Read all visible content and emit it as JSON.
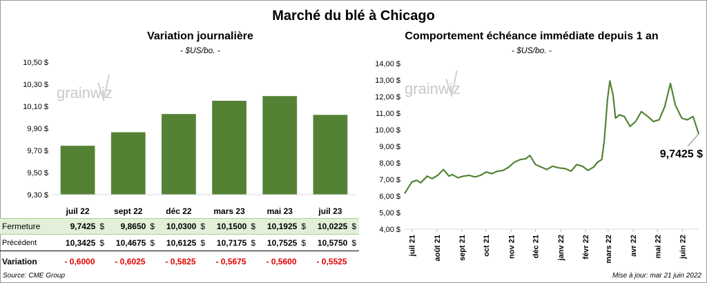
{
  "title": "Marché du blé à Chicago",
  "colors": {
    "bar": "#548235",
    "line": "#548235",
    "close_row": "#e2efd9",
    "negative": "#e00000"
  },
  "watermark": "grainwiz",
  "left_chart": {
    "title": "Variation  journalière",
    "subtitle": "- $US/bo. -"
  },
  "right_chart": {
    "title": "Comportement  échéance immédiate depuis 1 an",
    "subtitle": "- $US/bo. -",
    "callout": "9,7425 $"
  },
  "chart_data": [
    {
      "type": "bar",
      "categories": [
        "juil 22",
        "sept 22",
        "déc 22",
        "mars 23",
        "mai 23",
        "juil 23"
      ],
      "values": [
        9.7425,
        9.865,
        10.03,
        10.15,
        10.1925,
        10.0225
      ],
      "ylim": [
        9.3,
        10.5
      ],
      "yticks": [
        "9,30 $",
        "9,50 $",
        "9,70 $",
        "9,90 $",
        "10,10 $",
        "10,30 $",
        "10,50 $"
      ],
      "ytick_values": [
        9.3,
        9.5,
        9.7,
        9.9,
        10.1,
        10.3,
        10.5
      ],
      "grid": false
    },
    {
      "type": "line",
      "x": [
        "2021-06-22",
        "2021-07-01",
        "2021-07-07",
        "2021-07-12",
        "2021-07-20",
        "2021-07-26",
        "2021-08-02",
        "2021-08-09",
        "2021-08-16",
        "2021-08-20",
        "2021-08-27",
        "2021-09-03",
        "2021-09-10",
        "2021-09-17",
        "2021-09-24",
        "2021-10-01",
        "2021-10-08",
        "2021-10-15",
        "2021-10-22",
        "2021-10-29",
        "2021-11-05",
        "2021-11-12",
        "2021-11-19",
        "2021-11-24",
        "2021-12-01",
        "2021-12-08",
        "2021-12-15",
        "2021-12-22",
        "2021-12-30",
        "2022-01-07",
        "2022-01-14",
        "2022-01-21",
        "2022-01-28",
        "2022-02-04",
        "2022-02-11",
        "2022-02-16",
        "2022-02-21",
        "2022-02-24",
        "2022-02-28",
        "2022-03-03",
        "2022-03-07",
        "2022-03-10",
        "2022-03-15",
        "2022-03-21",
        "2022-03-28",
        "2022-04-04",
        "2022-04-11",
        "2022-04-19",
        "2022-04-26",
        "2022-05-03",
        "2022-05-10",
        "2022-05-17",
        "2022-05-23",
        "2022-05-31",
        "2022-06-07",
        "2022-06-14",
        "2022-06-21"
      ],
      "values": [
        6.15,
        6.85,
        6.95,
        6.8,
        7.2,
        7.05,
        7.25,
        7.6,
        7.2,
        7.3,
        7.1,
        7.2,
        7.25,
        7.15,
        7.25,
        7.45,
        7.35,
        7.5,
        7.55,
        7.75,
        8.05,
        8.2,
        8.25,
        8.45,
        7.9,
        7.75,
        7.6,
        7.8,
        7.7,
        7.65,
        7.5,
        7.9,
        7.8,
        7.55,
        7.75,
        8.05,
        8.2,
        9.3,
        11.8,
        12.95,
        12.1,
        10.7,
        10.9,
        10.8,
        10.2,
        10.5,
        11.1,
        10.8,
        10.5,
        10.6,
        11.4,
        12.8,
        11.5,
        10.7,
        10.6,
        10.8,
        9.75
      ],
      "ylim": [
        4.0,
        14.0
      ],
      "yticks": [
        "4,00 $",
        "5,00 $",
        "6,00 $",
        "7,00 $",
        "8,00 $",
        "9,00 $",
        "10,00 $",
        "11,00 $",
        "12,00 $",
        "13,00 $",
        "14,00 $"
      ],
      "ytick_values": [
        4,
        5,
        6,
        7,
        8,
        9,
        10,
        11,
        12,
        13,
        14
      ],
      "xticks": [
        "juil 21",
        "août 21",
        "sept 21",
        "oct 21",
        "nov 21",
        "déc 21",
        "janv 22",
        "févr 22",
        "mars 22",
        "avr 22",
        "mai 22",
        "juin 22"
      ],
      "xtick_dates": [
        "2021-07-01",
        "2021-08-01",
        "2021-09-01",
        "2021-10-01",
        "2021-11-01",
        "2021-12-01",
        "2022-01-01",
        "2022-02-01",
        "2022-03-01",
        "2022-04-01",
        "2022-05-01",
        "2022-06-01"
      ],
      "grid": false
    }
  ],
  "table": {
    "rows": [
      {
        "label": "Fermeture",
        "values": [
          "9,7425",
          "9,8650",
          "10,0300",
          "10,1500",
          "10,1925",
          "10,0225"
        ],
        "unit": "$"
      },
      {
        "label": "Précédent",
        "values": [
          "10,3425",
          "10,4675",
          "10,6125",
          "10,7175",
          "10,7525",
          "10,5750"
        ],
        "unit": "$"
      },
      {
        "label": "Variation",
        "values": [
          "- 0,6000",
          "- 0,6025",
          "- 0,5825",
          "- 0,5675",
          "- 0,5600",
          "- 0,5525"
        ]
      }
    ]
  },
  "footer": {
    "source": "Source: CME Group",
    "update": "Mise à jour: mar 21 juin 2022"
  }
}
